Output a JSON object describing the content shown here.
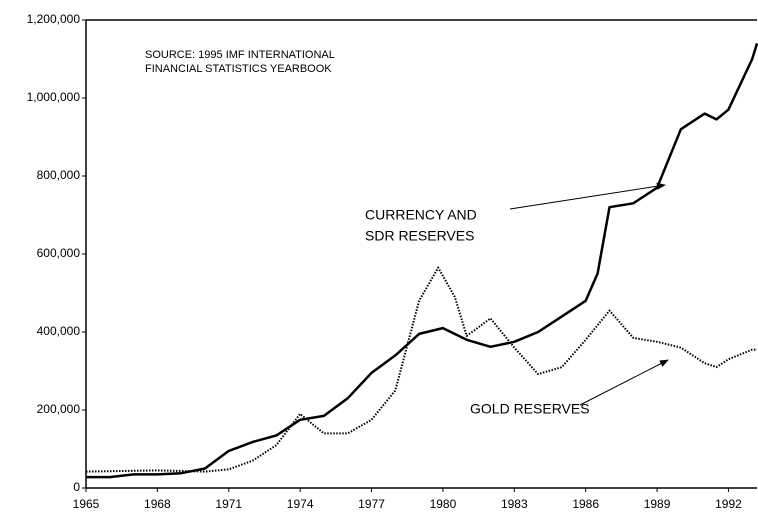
{
  "chart_data": {
    "type": "line",
    "annotations": [
      {
        "lines": [
          "SOURCE: 1995 IMF INTERNATIONAL",
          "FINANCIAL STATISTICS YEARBOOK"
        ]
      },
      {
        "lines": [
          "CURRENCY AND",
          "SDR RESERVES"
        ]
      },
      {
        "lines": [
          "GOLD RESERVES"
        ]
      }
    ],
    "series": [
      {
        "color": "#000000",
        "style": "solid",
        "x": [
          1965,
          1966,
          1967,
          1968,
          1969,
          1970,
          1971,
          1972,
          1973,
          1974,
          1975,
          1976,
          1977,
          1978,
          1979,
          1980,
          1981,
          1982,
          1983,
          1984,
          1985,
          1986,
          1986.5,
          1987,
          1988,
          1989,
          1990,
          1991,
          1991.5,
          1992,
          1993,
          1993.2
        ],
        "values": [
          28000,
          28000,
          35000,
          35000,
          38000,
          50000,
          95000,
          118000,
          135000,
          175000,
          185000,
          230000,
          295000,
          340000,
          395000,
          410000,
          380000,
          362000,
          375000,
          400000,
          440000,
          480000,
          550000,
          720000,
          730000,
          770000,
          920000,
          960000,
          945000,
          970000,
          1100000,
          1140000
        ]
      },
      {
        "color": "#000000",
        "style": "dotted",
        "x": [
          1965,
          1968,
          1970,
          1971,
          1972,
          1973,
          1974,
          1975,
          1976,
          1977,
          1978,
          1979,
          1979.8,
          1980.5,
          1981,
          1982,
          1983,
          1984,
          1985,
          1986,
          1987,
          1988,
          1989,
          1990,
          1991,
          1991.5,
          1992,
          1993,
          1993.2
        ],
        "values": [
          42000,
          45000,
          42000,
          48000,
          70000,
          110000,
          190000,
          140000,
          140000,
          175000,
          250000,
          480000,
          565000,
          490000,
          390000,
          435000,
          360000,
          292000,
          310000,
          380000,
          455000,
          385000,
          375000,
          360000,
          320000,
          310000,
          330000,
          355000,
          355000
        ]
      }
    ],
    "xlim": [
      1965,
      1993.2
    ],
    "xticks": [
      1965,
      1968,
      1971,
      1974,
      1977,
      1980,
      1983,
      1986,
      1989,
      1992
    ],
    "ylim": [
      0,
      1200000
    ],
    "yticks": [
      0,
      {
        "value": 200000,
        "label": "200,000"
      },
      {
        "value": 400000,
        "label": "400,000"
      },
      {
        "value": 600000,
        "label": "600,000"
      },
      {
        "value": 800000,
        "label": "800,000"
      },
      {
        "value": 1000000,
        "label": "1,000,000"
      },
      {
        "value": 1200000,
        "label": "1,200,000"
      }
    ],
    "grid": false
  }
}
